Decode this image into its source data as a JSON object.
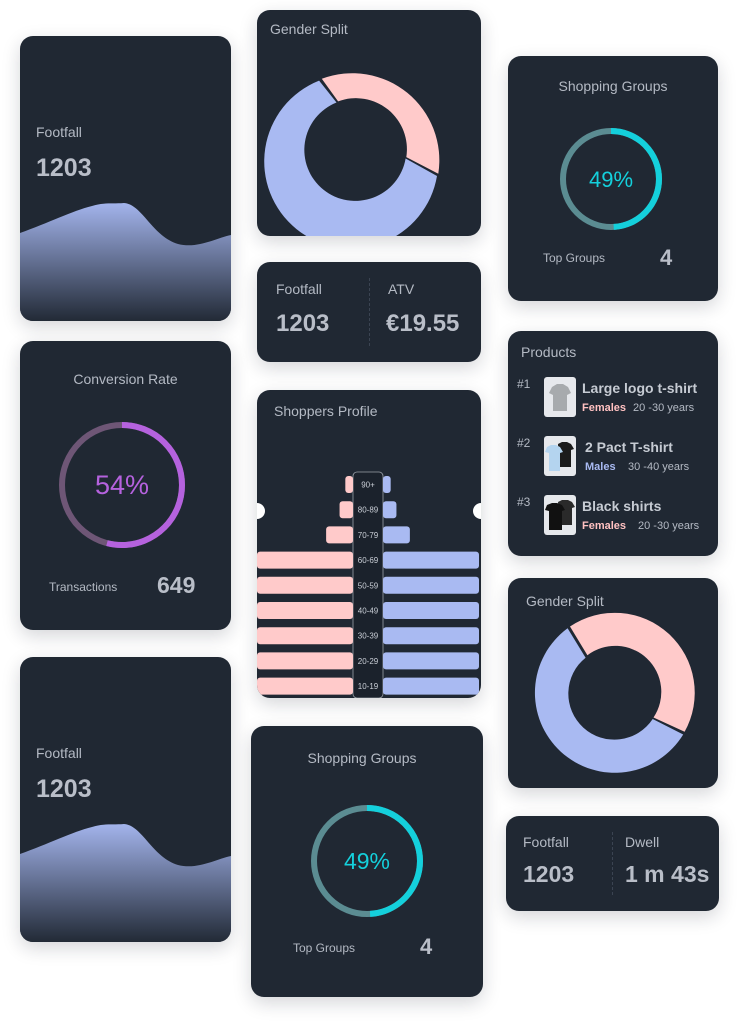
{
  "colors": {
    "card": "#202833",
    "female": "#ffcaca",
    "male": "#a9baf2",
    "cyan": "#14d0dc",
    "teal_muted": "#5b8c92",
    "purple": "#b562de",
    "purple_muted": "#6e5676",
    "female_text": "#ffc1c1",
    "male_text": "#a9baf2"
  },
  "footfall_card_1": {
    "label": "Footfall",
    "value": "1203"
  },
  "gender_split_top": {
    "title": "Gender Split",
    "male_pct": 58,
    "female_pct": 42
  },
  "shopping_groups_right": {
    "title": "Shopping Groups",
    "percent": "49%",
    "percent_value": 49,
    "footer_label": "Top Groups",
    "footer_value": "4"
  },
  "footfall_atv": {
    "left_label": "Footfall",
    "left_value": "1203",
    "right_label": "ATV",
    "right_value": "€19.55"
  },
  "products": {
    "title": "Products",
    "items": [
      {
        "rank": "#1",
        "name": "Large logo t-shirt",
        "gender": "Females",
        "gender_key": "female",
        "age": "20 -30 years",
        "icon": "grey-tshirt-icon"
      },
      {
        "rank": "#2",
        "name": "2 Pact T-shirt",
        "gender": "Males",
        "gender_key": "male",
        "age": "30 -40 years",
        "icon": "two-tshirts-icon"
      },
      {
        "rank": "#3",
        "name": "Black shirts",
        "gender": "Females",
        "gender_key": "female",
        "age": "20 -30 years",
        "icon": "black-tshirts-icon"
      }
    ]
  },
  "conversion": {
    "title": "Conversion Rate",
    "percent": "54%",
    "percent_value": 54,
    "footer_label": "Transactions",
    "footer_value": "649"
  },
  "shoppers_profile": {
    "title": "Shoppers Profile",
    "rows": [
      {
        "label": "90+",
        "female": 8,
        "male": 8
      },
      {
        "label": "80-89",
        "female": 14,
        "male": 14
      },
      {
        "label": "70-79",
        "female": 28,
        "male": 28
      },
      {
        "label": "60-69",
        "female": 100,
        "male": 100
      },
      {
        "label": "50-59",
        "female": 100,
        "male": 100
      },
      {
        "label": "40-49",
        "female": 100,
        "male": 100
      },
      {
        "label": "30-39",
        "female": 100,
        "male": 100
      },
      {
        "label": "20-29",
        "female": 100,
        "male": 100
      },
      {
        "label": "10-19",
        "female": 100,
        "male": 100
      }
    ]
  },
  "gender_split_right": {
    "title": "Gender Split",
    "male_pct": 58,
    "female_pct": 42
  },
  "footfall_card_2": {
    "label": "Footfall",
    "value": "1203"
  },
  "shopping_groups_bottom": {
    "title": "Shopping Groups",
    "percent": "49%",
    "percent_value": 49,
    "footer_label": "Top Groups",
    "footer_value": "4"
  },
  "footfall_dwell": {
    "left_label": "Footfall",
    "left_value": "1203",
    "right_label": "Dwell",
    "right_value": "1 m 43s"
  }
}
